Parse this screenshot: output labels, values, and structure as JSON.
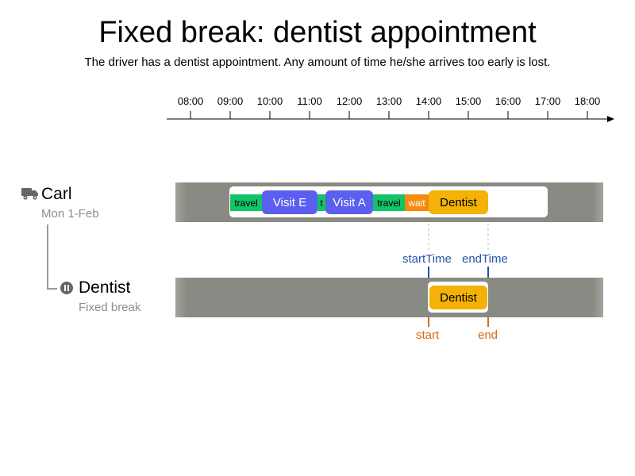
{
  "title": "Fixed break: dentist appointment",
  "subtitle": "The driver has a dentist appointment. Any amount of time he/she arrives too early is lost.",
  "timeline": {
    "ticks": [
      "08:00",
      "09:00",
      "10:00",
      "11:00",
      "12:00",
      "13:00",
      "14:00",
      "15:00",
      "16:00",
      "17:00",
      "18:00"
    ]
  },
  "vehicle": {
    "name": "Carl",
    "date": "Mon 1-Feb",
    "icon": "truck-icon",
    "segments": [
      {
        "kind": "travel",
        "label": "travel"
      },
      {
        "kind": "visit",
        "label": "Visit E"
      },
      {
        "kind": "travel",
        "label": "t"
      },
      {
        "kind": "visit",
        "label": "Visit A"
      },
      {
        "kind": "travel",
        "label": "travel"
      },
      {
        "kind": "wait",
        "label": "wait"
      },
      {
        "kind": "break",
        "label": "Dentist"
      }
    ]
  },
  "break_resource": {
    "name": "Dentist",
    "subtitle": "Fixed break",
    "icon": "pause-icon",
    "block_label": "Dentist"
  },
  "markers": {
    "start_time": "startTime",
    "end_time": "endTime",
    "start": "start",
    "end": "end"
  },
  "colors": {
    "visit": "#5a5ff0",
    "travel": "#12c467",
    "wait": "#f58a0c",
    "break": "#f4b106",
    "lane": "#8a8a84",
    "marker_blue": "#2255a4",
    "marker_orange": "#d96a10"
  }
}
